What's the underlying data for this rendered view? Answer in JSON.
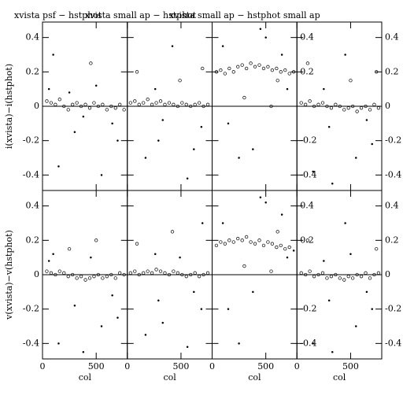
{
  "chart_data": [
    {
      "type": "scatter",
      "title": "xvista psf − hstphot",
      "ylabel": "i(xvista)−i(hstphot)",
      "x": [
        40,
        80,
        120,
        160,
        200,
        240,
        280,
        320,
        360,
        400,
        440,
        480,
        520,
        560,
        600,
        640,
        680,
        720,
        760,
        100,
        300,
        500,
        700,
        150,
        450,
        650,
        250,
        550,
        60,
        380
      ],
      "values": [
        0.03,
        0.02,
        0.01,
        0.04,
        0.0,
        -0.02,
        0.01,
        0.02,
        0.0,
        0.01,
        -0.01,
        0.02,
        0.0,
        0.01,
        -0.02,
        0.0,
        -0.01,
        0.01,
        -0.02,
        0.3,
        -0.15,
        0.12,
        -0.2,
        -0.35,
        0.25,
        -0.1,
        0.08,
        -0.4,
        0.1,
        -0.06
      ],
      "xlim": [
        0,
        790
      ],
      "ylim": [
        -0.49,
        0.49
      ],
      "xticks": [
        0,
        500
      ],
      "yticks": [
        -0.4,
        -0.2,
        0,
        0.2,
        0.4
      ]
    },
    {
      "type": "scatter",
      "title": "xvista small ap − hstphot",
      "x": [
        30,
        70,
        110,
        150,
        190,
        230,
        270,
        310,
        350,
        390,
        430,
        470,
        510,
        550,
        590,
        630,
        670,
        710,
        750,
        90,
        290,
        490,
        690,
        170,
        420,
        620,
        260,
        560,
        700,
        330
      ],
      "values": [
        0.02,
        0.03,
        0.01,
        0.02,
        0.04,
        0.01,
        0.02,
        0.03,
        0.01,
        0.02,
        0.01,
        0.0,
        0.02,
        0.01,
        0.0,
        0.01,
        0.02,
        0.0,
        0.01,
        0.2,
        -0.2,
        0.15,
        -0.12,
        -0.3,
        0.35,
        -0.25,
        0.1,
        -0.42,
        0.22,
        -0.08
      ],
      "xlim": [
        0,
        790
      ],
      "ylim": [
        -0.49,
        0.49
      ],
      "xticks": [
        0,
        500
      ],
      "yticks": [
        -0.4,
        -0.2,
        0,
        0.2,
        0.4
      ]
    },
    {
      "type": "scatter",
      "title": "xvista small ap − hstphot small ap",
      "x": [
        40,
        80,
        120,
        160,
        200,
        240,
        280,
        320,
        360,
        400,
        440,
        480,
        520,
        560,
        600,
        640,
        680,
        720,
        760,
        100,
        300,
        500,
        700,
        150,
        450,
        650,
        250,
        550,
        380,
        610
      ],
      "values": [
        0.2,
        0.21,
        0.19,
        0.22,
        0.2,
        0.23,
        0.24,
        0.22,
        0.25,
        0.23,
        0.24,
        0.22,
        0.23,
        0.21,
        0.22,
        0.2,
        0.21,
        0.19,
        0.2,
        0.35,
        0.05,
        0.4,
        0.1,
        -0.1,
        0.45,
        0.3,
        -0.3,
        0.0,
        -0.25,
        0.15
      ],
      "xlim": [
        0,
        790
      ],
      "ylim": [
        -0.49,
        0.49
      ],
      "xticks": [
        0,
        500
      ],
      "yticks": [
        -0.4,
        -0.2,
        0,
        0.2,
        0.4
      ]
    },
    {
      "type": "scatter",
      "x": [
        40,
        80,
        120,
        160,
        200,
        240,
        280,
        320,
        360,
        400,
        440,
        480,
        520,
        560,
        600,
        640,
        680,
        720,
        760,
        100,
        300,
        500,
        700,
        150,
        450,
        650,
        250,
        550,
        330,
        740
      ],
      "values": [
        0.02,
        0.01,
        0.03,
        0.0,
        0.01,
        0.02,
        0.0,
        -0.01,
        0.01,
        0.0,
        -0.02,
        -0.01,
        0.0,
        -0.03,
        -0.01,
        0.0,
        -0.02,
        0.01,
        -0.01,
        0.25,
        -0.12,
        0.15,
        -0.22,
        -0.38,
        0.3,
        -0.08,
        0.1,
        -0.3,
        -0.45,
        0.2
      ],
      "xlim": [
        0,
        790
      ],
      "ylim": [
        -0.49,
        0.49
      ],
      "xticks": [
        0,
        500
      ],
      "yticks": [
        -0.4,
        -0.2,
        0,
        0.2,
        0.4
      ]
    },
    {
      "type": "scatter",
      "ylabel": "v(xvista)−v(hstphot)",
      "xlabel": "col",
      "x": [
        40,
        80,
        120,
        160,
        200,
        240,
        280,
        320,
        360,
        400,
        440,
        480,
        520,
        560,
        600,
        640,
        680,
        720,
        760,
        100,
        300,
        500,
        700,
        150,
        450,
        650,
        250,
        550,
        60,
        380
      ],
      "values": [
        0.02,
        0.01,
        0.0,
        0.02,
        0.01,
        -0.01,
        0.0,
        -0.02,
        -0.01,
        -0.03,
        -0.02,
        -0.01,
        0.0,
        -0.02,
        -0.01,
        0.0,
        -0.02,
        0.01,
        0.0,
        0.12,
        -0.18,
        0.2,
        -0.25,
        -0.4,
        0.1,
        -0.12,
        0.15,
        -0.3,
        0.08,
        -0.45
      ],
      "xlim": [
        0,
        790
      ],
      "ylim": [
        -0.49,
        0.49
      ],
      "xticks": [
        0,
        500
      ],
      "yticks": [
        -0.4,
        -0.2,
        0,
        0.2,
        0.4
      ]
    },
    {
      "type": "scatter",
      "xlabel": "col",
      "x": [
        30,
        70,
        110,
        150,
        190,
        230,
        270,
        310,
        350,
        390,
        430,
        470,
        510,
        550,
        590,
        630,
        670,
        710,
        750,
        90,
        290,
        490,
        690,
        170,
        420,
        620,
        260,
        560,
        700,
        330
      ],
      "values": [
        0.01,
        0.02,
        0.0,
        0.01,
        0.02,
        0.01,
        0.03,
        0.02,
        0.01,
        0.0,
        0.02,
        0.01,
        0.0,
        -0.01,
        0.0,
        0.01,
        -0.01,
        0.0,
        0.01,
        0.18,
        -0.15,
        0.1,
        -0.2,
        -0.35,
        0.25,
        -0.1,
        0.12,
        -0.42,
        0.3,
        -0.28
      ],
      "xlim": [
        0,
        790
      ],
      "ylim": [
        -0.49,
        0.49
      ],
      "xticks": [
        0,
        500
      ],
      "yticks": [
        -0.4,
        -0.2,
        0,
        0.2,
        0.4
      ]
    },
    {
      "type": "scatter",
      "xlabel": "col",
      "x": [
        40,
        80,
        120,
        160,
        200,
        240,
        280,
        320,
        360,
        400,
        440,
        480,
        520,
        560,
        600,
        640,
        680,
        720,
        760,
        100,
        300,
        500,
        700,
        150,
        450,
        650,
        250,
        550,
        380,
        610
      ],
      "values": [
        0.17,
        0.19,
        0.18,
        0.2,
        0.19,
        0.21,
        0.2,
        0.22,
        0.19,
        0.18,
        0.2,
        0.17,
        0.19,
        0.18,
        0.16,
        0.17,
        0.15,
        0.16,
        0.14,
        0.3,
        0.05,
        0.42,
        0.1,
        -0.2,
        0.45,
        0.35,
        -0.4,
        0.02,
        -0.1,
        0.25
      ],
      "xlim": [
        0,
        790
      ],
      "ylim": [
        -0.49,
        0.49
      ],
      "xticks": [
        0,
        500
      ],
      "yticks": [
        -0.4,
        -0.2,
        0,
        0.2,
        0.4
      ]
    },
    {
      "type": "scatter",
      "xlabel": "col",
      "x": [
        40,
        80,
        120,
        160,
        200,
        240,
        280,
        320,
        360,
        400,
        440,
        480,
        520,
        560,
        600,
        640,
        680,
        720,
        760,
        100,
        300,
        500,
        700,
        150,
        450,
        650,
        250,
        550,
        330,
        740
      ],
      "values": [
        0.01,
        0.0,
        0.02,
        -0.01,
        0.0,
        0.01,
        -0.02,
        -0.01,
        0.0,
        -0.02,
        -0.03,
        -0.01,
        -0.02,
        0.0,
        -0.01,
        0.01,
        -0.02,
        0.0,
        0.01,
        0.2,
        -0.15,
        0.12,
        -0.2,
        -0.4,
        0.3,
        -0.1,
        0.08,
        -0.3,
        -0.45,
        0.15
      ],
      "xlim": [
        0,
        790
      ],
      "ylim": [
        -0.49,
        0.49
      ],
      "xticks": [
        0,
        500
      ],
      "yticks": [
        -0.4,
        -0.2,
        0,
        0.2,
        0.4
      ]
    }
  ]
}
